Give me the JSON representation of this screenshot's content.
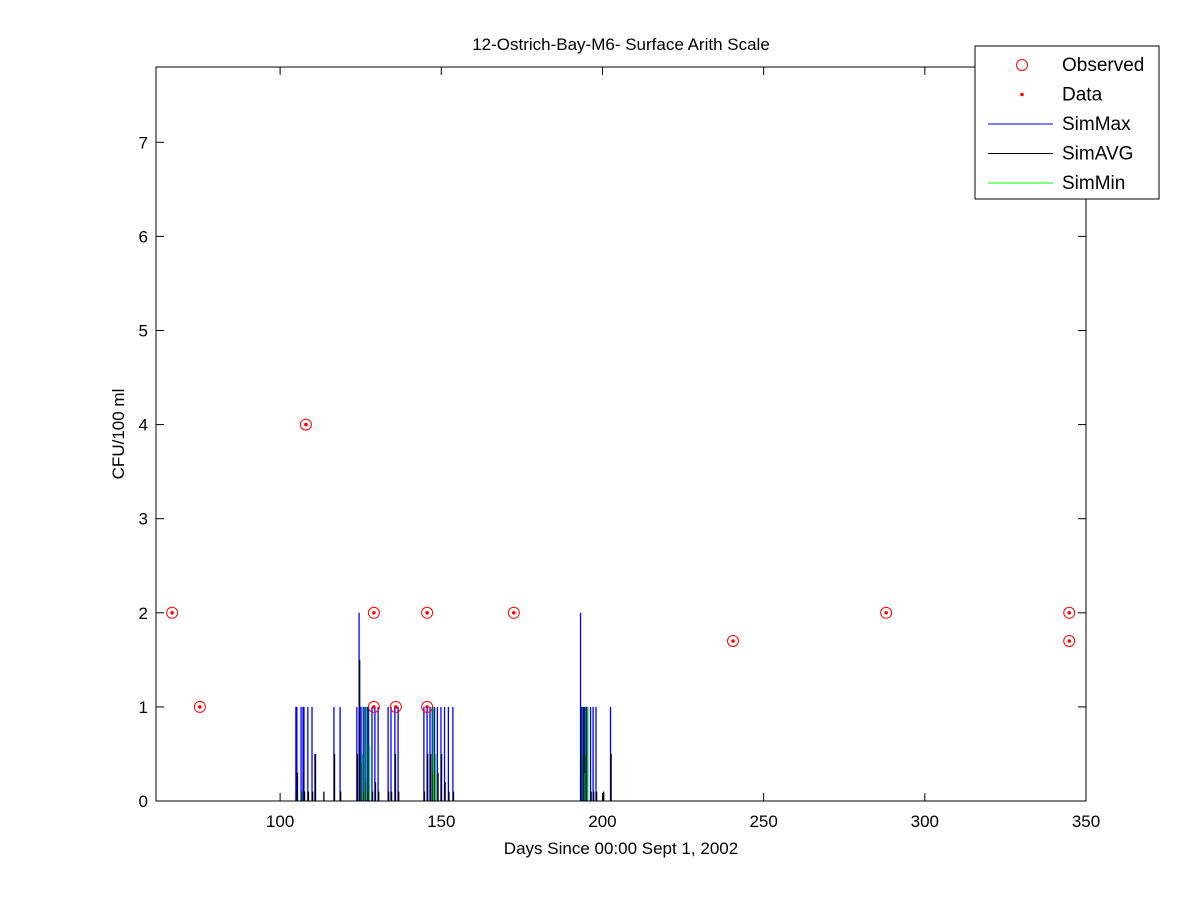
{
  "chart_data": {
    "type": "scatter",
    "title": "12-Ostrich-Bay-M6- Surface Arith Scale",
    "xlabel": "Days Since 00:00 Sept 1, 2002",
    "ylabel": "CFU/100 ml",
    "xlim": [
      61.5,
      350
    ],
    "ylim": [
      0,
      7.8
    ],
    "xticks": [
      100,
      150,
      200,
      250,
      300,
      350
    ],
    "yticks": [
      0,
      1,
      2,
      3,
      4,
      5,
      6,
      7
    ],
    "grid": false,
    "legend_position": "top-right",
    "legend": [
      {
        "label": "Observed",
        "marker": "circle",
        "color": "#ff0000"
      },
      {
        "label": "Data",
        "marker": "dot",
        "color": "#ff0000"
      },
      {
        "label": "SimMax",
        "marker": "line",
        "color": "#0000ff"
      },
      {
        "label": "SimAVG",
        "marker": "line",
        "color": "#000000"
      },
      {
        "label": "SimMin",
        "marker": "line",
        "color": "#00ff00"
      }
    ],
    "observed": [
      [
        66.5,
        2
      ],
      [
        75.1,
        1
      ],
      [
        108,
        4
      ],
      [
        129.1,
        2
      ],
      [
        129.1,
        1
      ],
      [
        135.9,
        1
      ],
      [
        145.6,
        2
      ],
      [
        145.6,
        1
      ],
      [
        172.5,
        2
      ],
      [
        240.5,
        1.7
      ],
      [
        288,
        2
      ],
      [
        344.8,
        2
      ],
      [
        344.8,
        1.7
      ]
    ],
    "sim_spikes_columns": [
      "day",
      "SimMax",
      "SimAVG",
      "SimMin"
    ],
    "sim_spikes": [
      [
        104.9,
        1,
        0.1,
        0
      ],
      [
        105.2,
        1,
        0.3,
        0
      ],
      [
        106.5,
        1,
        0.1,
        0.1
      ],
      [
        107.1,
        1,
        0.3,
        0.1
      ],
      [
        107.4,
        1,
        0.1,
        0
      ],
      [
        108.6,
        1,
        0.1,
        0
      ],
      [
        109.9,
        1,
        0.1,
        0
      ],
      [
        110.8,
        0.5,
        0.5,
        0
      ],
      [
        113.4,
        0,
        0.1,
        0
      ],
      [
        116.7,
        1,
        0.5,
        0
      ],
      [
        118.6,
        1,
        0.1,
        0
      ],
      [
        123.8,
        1,
        0.5,
        0
      ],
      [
        124.5,
        2,
        1.5,
        0
      ],
      [
        125.1,
        1,
        0.4,
        0.5
      ],
      [
        125.8,
        1,
        0.1,
        1
      ],
      [
        126.4,
        1,
        0.2,
        1
      ],
      [
        127.1,
        1,
        0.1,
        1
      ],
      [
        127.4,
        1,
        0.1,
        0.6
      ],
      [
        128.5,
        1,
        0.1,
        0
      ],
      [
        129.4,
        1,
        0.2,
        0
      ],
      [
        130.4,
        1,
        0.1,
        0
      ],
      [
        133.5,
        1,
        0.1,
        0
      ],
      [
        134.4,
        1,
        0.1,
        0
      ],
      [
        135.6,
        1,
        0.5,
        0
      ],
      [
        136.6,
        1,
        0.1,
        0
      ],
      [
        144.6,
        1,
        0.1,
        0
      ],
      [
        145.6,
        1,
        0.5,
        0
      ],
      [
        146.5,
        1,
        0.5,
        0
      ],
      [
        147.2,
        1,
        0.3,
        1
      ],
      [
        147.9,
        1,
        0.5,
        0.5
      ],
      [
        148.8,
        1,
        0.3,
        0
      ],
      [
        149.9,
        1,
        0.5,
        0
      ],
      [
        151,
        1,
        0.2,
        0
      ],
      [
        152.2,
        1,
        0.1,
        0
      ],
      [
        153.6,
        1,
        0.1,
        0
      ],
      [
        193.2,
        2,
        1,
        1
      ],
      [
        193.6,
        1,
        0.5,
        1
      ],
      [
        194.1,
        1,
        1,
        0.3
      ],
      [
        194.6,
        1,
        0.5,
        1
      ],
      [
        195.1,
        1,
        1,
        1
      ],
      [
        196.3,
        1,
        0.1,
        0
      ],
      [
        197.1,
        1,
        0.1,
        0
      ],
      [
        198,
        1,
        0.1,
        0
      ],
      [
        200.2,
        0,
        0.1,
        0
      ],
      [
        202.5,
        1,
        0.5,
        0
      ]
    ]
  }
}
